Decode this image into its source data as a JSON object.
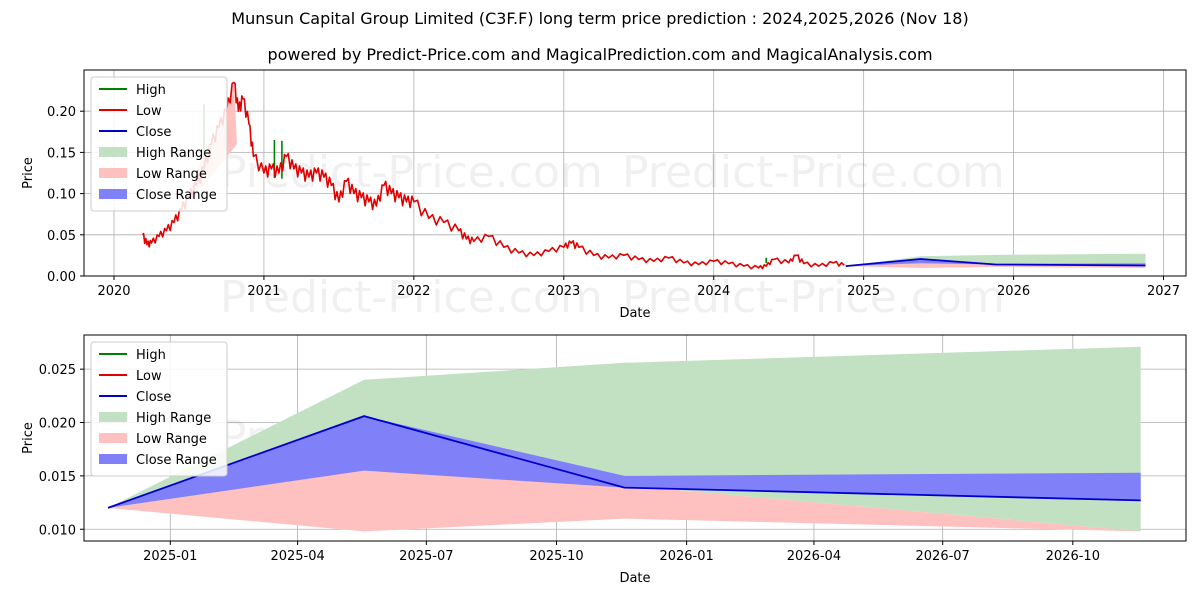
{
  "title": "Munsun Capital Group Limited (C3F.F) long term price prediction : 2024,2025,2026 (Nov 18)",
  "subtitle": "powered by Predict-Price.com and MagicalPrediction.com and MagicalAnalysis.com",
  "watermark": "Predict-Price.com",
  "colors": {
    "high": "#008000",
    "low": "#e00000",
    "close": "#0000cc",
    "high_range": "#c2e0c2",
    "low_range": "#ffc0c0",
    "close_range": "#8080f8",
    "grid": "#b0b0b0"
  },
  "legend_labels": [
    "High",
    "Low",
    "Close",
    "High Range",
    "Low Range",
    "Close Range"
  ],
  "chart_data": [
    {
      "type": "line",
      "panel": "top",
      "title": "",
      "xlabel": "Date",
      "ylabel": "Price",
      "xlim": [
        2019.8,
        2027.15
      ],
      "ylim": [
        0,
        0.25
      ],
      "x_ticks": [
        2020,
        2021,
        2022,
        2023,
        2024,
        2025,
        2026,
        2027
      ],
      "x_tick_labels": [
        "2020",
        "2021",
        "2022",
        "2023",
        "2024",
        "2025",
        "2026",
        "2027"
      ],
      "y_ticks": [
        0.0,
        0.05,
        0.1,
        0.15,
        0.2
      ],
      "y_tick_labels": [
        "0.00",
        "0.05",
        "0.10",
        "0.15",
        "0.20"
      ],
      "grid": true,
      "legend_position": "top-left",
      "history": {
        "x": [
          2020.19,
          2020.22,
          2020.25,
          2020.3,
          2020.35,
          2020.4,
          2020.45,
          2020.5,
          2020.55,
          2020.6,
          2020.65,
          2020.7,
          2020.75,
          2020.8,
          2020.83,
          2020.86,
          2020.9,
          2020.93,
          2021.0,
          2021.05,
          2021.1,
          2021.15,
          2021.2,
          2021.25,
          2021.3,
          2021.35,
          2021.4,
          2021.45,
          2021.5,
          2021.55,
          2021.6,
          2021.65,
          2021.7,
          2021.75,
          2021.8,
          2021.85,
          2021.9,
          2021.95,
          2022.0,
          2022.1,
          2022.2,
          2022.3,
          2022.35,
          2022.4,
          2022.5,
          2022.6,
          2022.7,
          2022.8,
          2022.9,
          2023.0,
          2023.05,
          2023.1,
          2023.2,
          2023.3,
          2023.4,
          2023.5,
          2023.6,
          2023.7,
          2023.8,
          2023.9,
          2024.0,
          2024.1,
          2024.2,
          2024.3,
          2024.35,
          2024.4,
          2024.5,
          2024.55,
          2024.6,
          2024.7,
          2024.8,
          2024.87
        ],
        "low": [
          0.05,
          0.038,
          0.04,
          0.048,
          0.055,
          0.065,
          0.08,
          0.095,
          0.11,
          0.13,
          0.16,
          0.18,
          0.2,
          0.235,
          0.2,
          0.215,
          0.185,
          0.145,
          0.125,
          0.13,
          0.125,
          0.145,
          0.13,
          0.125,
          0.12,
          0.125,
          0.12,
          0.11,
          0.09,
          0.115,
          0.1,
          0.095,
          0.09,
          0.085,
          0.11,
          0.1,
          0.095,
          0.09,
          0.09,
          0.07,
          0.065,
          0.055,
          0.045,
          0.042,
          0.048,
          0.035,
          0.028,
          0.025,
          0.03,
          0.035,
          0.04,
          0.035,
          0.025,
          0.022,
          0.025,
          0.02,
          0.018,
          0.022,
          0.016,
          0.014,
          0.018,
          0.015,
          0.012,
          0.01,
          0.012,
          0.02,
          0.016,
          0.025,
          0.015,
          0.012,
          0.016,
          0.013
        ]
      },
      "high_spikes": [
        [
          2020.6,
          0.208
        ],
        [
          2021.07,
          0.165
        ],
        [
          2021.12,
          0.164
        ],
        [
          2024.35,
          0.022
        ]
      ],
      "forecast": {
        "x": [
          2024.88,
          2025.38,
          2025.88,
          2026.88
        ],
        "close": [
          0.012,
          0.0206,
          0.0139,
          0.0127
        ]
      }
    },
    {
      "type": "area",
      "panel": "bottom",
      "title": "",
      "xlabel": "Date",
      "ylabel": "Price",
      "xlim": [
        "2024-11-01",
        "2026-12-20"
      ],
      "ylim": [
        0.0089,
        0.0282
      ],
      "x_ticks": [
        "2025-01-01",
        "2025-04-01",
        "2025-07-01",
        "2025-10-01",
        "2026-01-01",
        "2026-04-01",
        "2026-07-01",
        "2026-10-01"
      ],
      "x_tick_labels": [
        "2025-01",
        "2025-04",
        "2025-07",
        "2025-10",
        "2026-01",
        "2026-04",
        "2026-07",
        "2026-10"
      ],
      "y_ticks": [
        0.01,
        0.015,
        0.02,
        0.025
      ],
      "y_tick_labels": [
        "0.010",
        "0.015",
        "0.020",
        "0.025"
      ],
      "grid": true,
      "legend_position": "top-left",
      "x": [
        "2024-11-18",
        "2025-05-18",
        "2025-11-18",
        "2026-11-18"
      ],
      "series": [
        {
          "name": "High",
          "values": [
            0.012,
            0.024,
            0.0256,
            0.0271
          ]
        },
        {
          "name": "Close",
          "values": [
            0.012,
            0.0206,
            0.0139,
            0.0127
          ]
        },
        {
          "name": "High Range",
          "upper": [
            0.012,
            0.024,
            0.0256,
            0.0271
          ],
          "lower": [
            0.012,
            0.0155,
            0.0141,
            0.0098
          ]
        },
        {
          "name": "Low Range",
          "upper": [
            0.012,
            0.0155,
            0.0141,
            0.0098
          ],
          "lower": [
            0.012,
            0.0098,
            0.011,
            0.0098
          ]
        },
        {
          "name": "Close Range",
          "upper": [
            0.012,
            0.0206,
            0.015,
            0.0153
          ],
          "lower": [
            0.012,
            0.0155,
            0.0139,
            0.0127
          ]
        }
      ]
    }
  ]
}
